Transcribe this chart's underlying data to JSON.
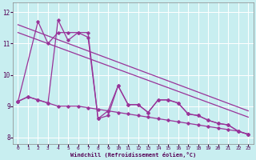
{
  "xlabel": "Windchill (Refroidissement éolien,°C)",
  "bg_color": "#c8eef0",
  "line_color": "#993399",
  "xlim": [
    -0.5,
    23.5
  ],
  "ylim": [
    7.8,
    12.3
  ],
  "yticks": [
    8,
    9,
    10,
    11,
    12
  ],
  "xticks": [
    0,
    1,
    2,
    3,
    4,
    5,
    6,
    7,
    8,
    9,
    10,
    11,
    12,
    13,
    14,
    15,
    16,
    17,
    18,
    19,
    20,
    21,
    22,
    23
  ],
  "series_flat": {
    "x": [
      0,
      1,
      2,
      3,
      4,
      5,
      6,
      7,
      8,
      9,
      10,
      11,
      12,
      13,
      14,
      15,
      16,
      17,
      18,
      19,
      20,
      21,
      22,
      23
    ],
    "y": [
      9.15,
      9.3,
      9.2,
      9.1,
      9.0,
      9.0,
      9.0,
      8.95,
      8.9,
      8.85,
      8.8,
      8.75,
      8.7,
      8.65,
      8.6,
      8.55,
      8.5,
      8.45,
      8.4,
      8.35,
      8.3,
      8.25,
      8.2,
      8.1
    ]
  },
  "series_wiggly": {
    "x": [
      0,
      1,
      2,
      3,
      4,
      5,
      6,
      7,
      8,
      9,
      10,
      11,
      12,
      13,
      14,
      15,
      16,
      17,
      18,
      19,
      20,
      21,
      22,
      23
    ],
    "y": [
      9.15,
      9.3,
      9.2,
      9.1,
      11.75,
      11.1,
      11.35,
      11.35,
      8.6,
      8.85,
      9.65,
      9.05,
      9.05,
      8.8,
      9.2,
      9.2,
      9.1,
      8.75,
      8.7,
      8.55,
      8.45,
      8.4,
      8.2,
      8.1
    ]
  },
  "series_high": {
    "x": [
      0,
      2,
      3,
      4,
      5,
      6,
      7,
      8,
      9,
      10,
      11,
      12,
      13,
      14,
      15,
      16,
      17,
      18,
      19,
      20,
      21,
      22,
      23
    ],
    "y": [
      9.15,
      11.7,
      11.0,
      11.35,
      11.35,
      11.35,
      11.2,
      8.6,
      8.7,
      9.65,
      9.05,
      9.05,
      8.8,
      9.2,
      9.2,
      9.1,
      8.75,
      8.7,
      8.55,
      8.45,
      8.4,
      8.2,
      8.1
    ]
  },
  "trend1_x": [
    0,
    23
  ],
  "trend1_y": [
    11.6,
    8.85
  ],
  "trend2_x": [
    0,
    23
  ],
  "trend2_y": [
    11.35,
    8.65
  ]
}
